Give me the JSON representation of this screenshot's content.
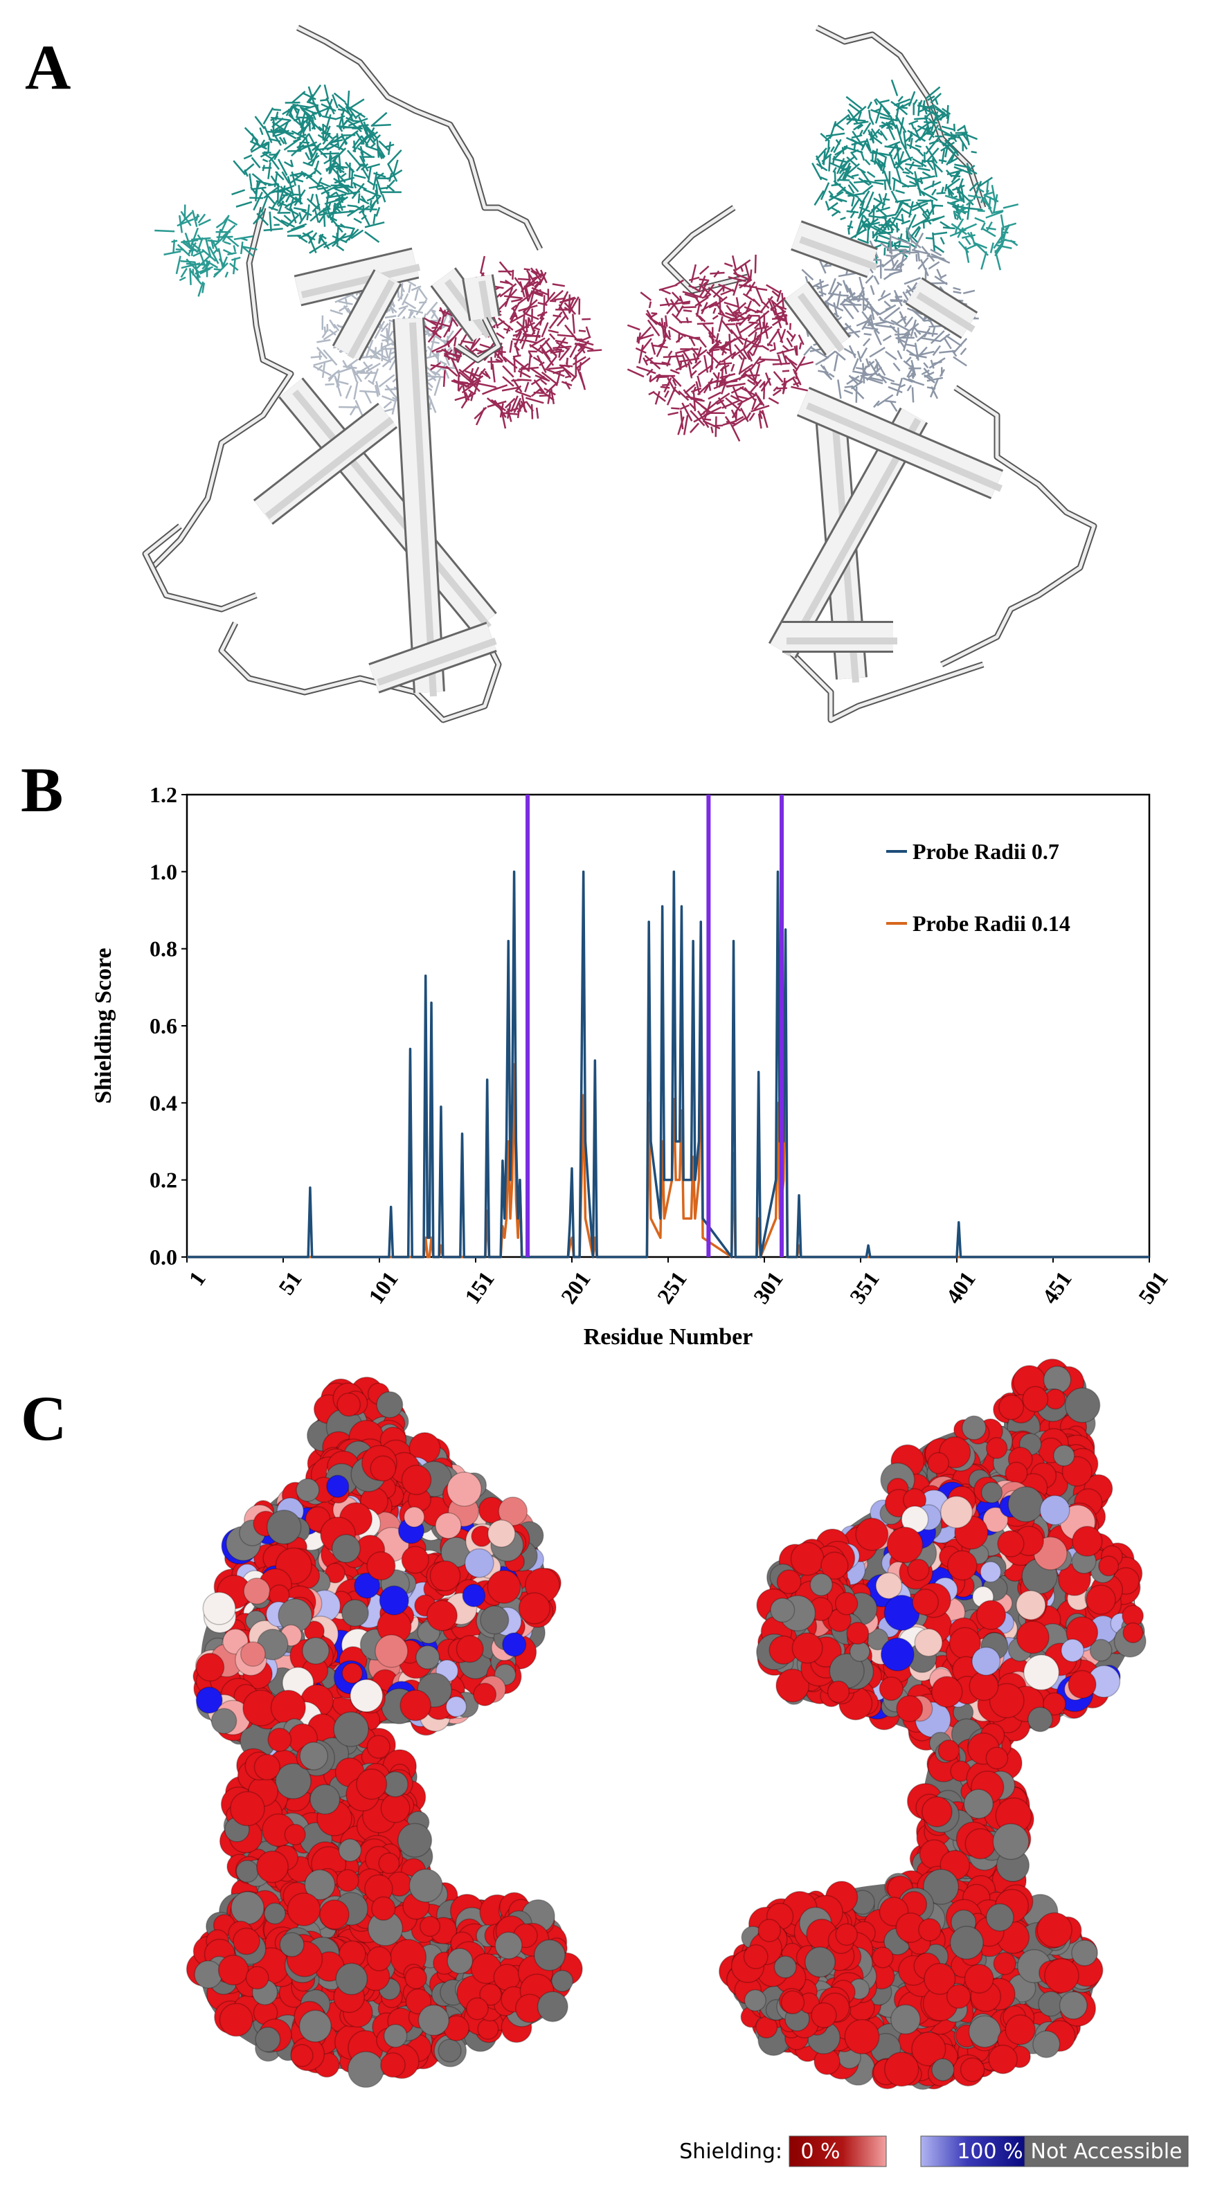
{
  "panel_labels": [
    "A",
    "B",
    "C"
  ],
  "shielding_legend": {
    "title": "Shielding:",
    "low": "0 %",
    "high": "100 %",
    "na": "Not Accessible"
  },
  "chart_data": {
    "type": "line",
    "x_label": "Residue Number",
    "y_label": "Shielding Score",
    "x": [
      1,
      64,
      65,
      66,
      106,
      107,
      108,
      116,
      117,
      118,
      124,
      125,
      126,
      127,
      128,
      129,
      132,
      133,
      134,
      143,
      144,
      145,
      156,
      157,
      158,
      164,
      165,
      166,
      167,
      168,
      169,
      170,
      171,
      172,
      173,
      174,
      175,
      199,
      200,
      201,
      202,
      205,
      206,
      207,
      208,
      212,
      213,
      214,
      240,
      241,
      242,
      247,
      248,
      249,
      253,
      254,
      255,
      257,
      258,
      259,
      263,
      264,
      265,
      267,
      268,
      269,
      284,
      285,
      286,
      297,
      298,
      299,
      307,
      308,
      309,
      311,
      312,
      313,
      318,
      319,
      320,
      354,
      355,
      356,
      401,
      402,
      403,
      501
    ],
    "series": [
      {
        "name": "Probe Radii 0.7",
        "color": "#1f4e79",
        "values": [
          0,
          0,
          0.18,
          0,
          0,
          0.13,
          0,
          0,
          0.54,
          0,
          0,
          0.73,
          0.05,
          0.05,
          0.66,
          0,
          0,
          0.39,
          0,
          0,
          0.32,
          0,
          0,
          0.46,
          0,
          0,
          0.25,
          0.1,
          0.3,
          0.82,
          0.2,
          0.4,
          1.0,
          0.3,
          0.1,
          0.2,
          0,
          0,
          0.09,
          0.23,
          0,
          0,
          0.47,
          1.0,
          0.3,
          0,
          0.51,
          0,
          0,
          0.87,
          0.3,
          0.1,
          0.91,
          0.2,
          0.2,
          1.0,
          0.3,
          0.3,
          0.91,
          0.2,
          0.2,
          0.82,
          0.2,
          0.3,
          0.87,
          0.1,
          0,
          0.82,
          0,
          0,
          0.48,
          0,
          0.2,
          1.0,
          0.3,
          0.3,
          0.85,
          0,
          0,
          0.16,
          0,
          0,
          0.03,
          0,
          0,
          0.09,
          0,
          0
        ]
      },
      {
        "name": "Probe Radii 0.14",
        "color": "#d8661c",
        "values": [
          0,
          0,
          0,
          0,
          0,
          0,
          0,
          0,
          0,
          0,
          0,
          0.05,
          0,
          0,
          0.05,
          0,
          0,
          0.03,
          0,
          0,
          0,
          0,
          0,
          0.12,
          0,
          0,
          0.08,
          0.05,
          0.1,
          0.3,
          0.1,
          0.2,
          0.5,
          0.15,
          0.05,
          0.2,
          0,
          0,
          0.03,
          0.05,
          0,
          0,
          0.2,
          0.42,
          0.1,
          0,
          0.05,
          0,
          0,
          0.4,
          0.1,
          0.05,
          0.3,
          0.1,
          0.2,
          0.41,
          0.2,
          0.2,
          0.38,
          0.1,
          0.1,
          0.26,
          0.1,
          0.2,
          0.6,
          0.05,
          0,
          0.27,
          0,
          0,
          0.1,
          0,
          0.1,
          0.4,
          0.1,
          0.2,
          0.58,
          0,
          0,
          0.03,
          0,
          0,
          0,
          0,
          0,
          0,
          0,
          0
        ]
      }
    ],
    "vlines": [
      178,
      272,
      310
    ],
    "vline_color": "#7b2be2",
    "xlim": [
      1,
      501
    ],
    "xticks": [
      1,
      51,
      101,
      151,
      201,
      251,
      301,
      351,
      401,
      451,
      501
    ],
    "ylim": [
      0,
      1.2
    ],
    "yticks": [
      {
        "value": 0,
        "label": "0.0"
      },
      0.2,
      0.4,
      0.6,
      0.8,
      {
        "value": 1,
        "label": "1.0"
      },
      1.2
    ],
    "legend": "upper right"
  }
}
